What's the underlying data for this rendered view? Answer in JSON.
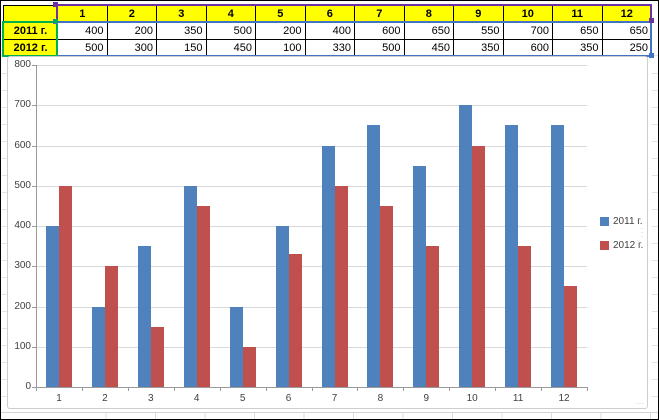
{
  "table": {
    "corner_label": "",
    "columns": [
      "1",
      "2",
      "3",
      "4",
      "5",
      "6",
      "7",
      "8",
      "9",
      "10",
      "11",
      "12"
    ],
    "rows": [
      {
        "label": "2011 г.",
        "values": [
          400,
          200,
          350,
          500,
          200,
          400,
          600,
          650,
          550,
          700,
          650,
          650
        ]
      },
      {
        "label": "2012 г.",
        "values": [
          500,
          300,
          150,
          450,
          100,
          330,
          500,
          450,
          350,
          600,
          350,
          250
        ]
      }
    ]
  },
  "chart_data": {
    "type": "bar",
    "title": "",
    "categories": [
      "1",
      "2",
      "3",
      "4",
      "5",
      "6",
      "7",
      "8",
      "9",
      "10",
      "11",
      "12"
    ],
    "series": [
      {
        "name": "2011 г.",
        "color": "#4F81BD",
        "values": [
          400,
          200,
          350,
          500,
          200,
          400,
          600,
          650,
          550,
          700,
          650,
          650
        ]
      },
      {
        "name": "2012 г.",
        "color": "#C0504D",
        "values": [
          500,
          300,
          150,
          450,
          100,
          330,
          500,
          450,
          350,
          600,
          350,
          250
        ]
      }
    ],
    "xlabel": "",
    "ylabel": "",
    "ylim": [
      0,
      800
    ],
    "ytick_step": 100,
    "grid": true,
    "legend_position": "right"
  },
  "colors": {
    "header_fill": "#FFFF00",
    "series_2011": "#4F81BD",
    "series_2012": "#C0504D",
    "values_range_border": "#4472C4",
    "categories_range_border": "#7030A0",
    "names_range_border": "#00B050",
    "gridline": "#D9D9D9",
    "axis": "#9A9A9A"
  }
}
